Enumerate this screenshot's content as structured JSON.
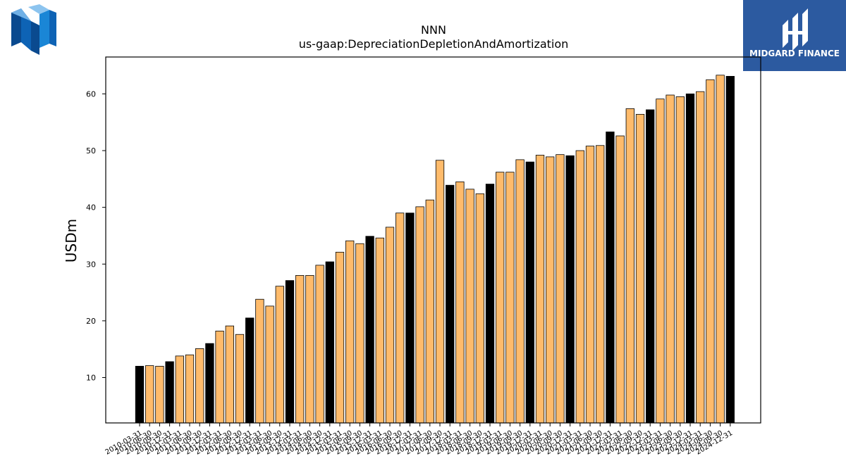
{
  "logos": {
    "left": {
      "icon": "nnn-logo-icon"
    },
    "right": {
      "text": "MIDGARD FINANCE",
      "icon": "midgard-finance-logo-icon",
      "bg_color": "#2c5aa0"
    }
  },
  "colors": {
    "bar_light": "#ffbb6b",
    "bar_dark": "#000000",
    "edge": "#000000"
  },
  "chart_data": {
    "type": "bar",
    "title": "NNN",
    "subtitle": "us-gaap:DepreciationDepletionAndAmortization",
    "xlabel": "",
    "ylabel": "USDm",
    "ylim": [
      2,
      66.5
    ],
    "yticks": [
      10,
      20,
      30,
      40,
      50,
      60
    ],
    "grid": false,
    "categories": [
      "2010-03-31",
      "2010-06-30",
      "2010-09-30",
      "2010-12-31",
      "2011-03-31",
      "2011-06-30",
      "2011-09-30",
      "2011-12-31",
      "2012-03-31",
      "2012-06-30",
      "2012-09-30",
      "2012-12-31",
      "2013-03-31",
      "2013-06-30",
      "2013-09-30",
      "2013-12-31",
      "2014-03-31",
      "2014-06-30",
      "2014-09-30",
      "2014-12-31",
      "2015-03-31",
      "2015-06-30",
      "2015-09-30",
      "2015-12-31",
      "2016-03-31",
      "2016-06-30",
      "2016-09-30",
      "2016-12-31",
      "2017-03-31",
      "2017-06-30",
      "2017-09-30",
      "2017-12-31",
      "2018-03-31",
      "2018-06-30",
      "2018-09-30",
      "2018-12-31",
      "2019-03-31",
      "2019-06-30",
      "2019-09-30",
      "2019-12-31",
      "2020-03-31",
      "2020-06-30",
      "2020-09-30",
      "2020-12-31",
      "2021-03-31",
      "2021-06-30",
      "2021-09-30",
      "2021-12-31",
      "2022-03-31",
      "2022-06-30",
      "2022-09-30",
      "2022-12-31",
      "2023-03-31",
      "2023-06-30",
      "2023-09-30",
      "2023-12-31",
      "2024-03-31",
      "2024-06-30",
      "2024-09-30",
      "2024-12-31"
    ],
    "values": [
      12.0,
      12.1,
      12.0,
      12.8,
      13.8,
      14.0,
      15.1,
      16.0,
      18.2,
      19.1,
      17.6,
      20.5,
      23.8,
      22.6,
      26.1,
      27.1,
      28.0,
      28.0,
      29.8,
      30.4,
      32.1,
      34.1,
      33.6,
      34.9,
      34.6,
      36.5,
      39.0,
      39.0,
      40.1,
      41.3,
      48.3,
      43.9,
      44.5,
      43.2,
      42.4,
      44.1,
      46.2,
      46.2,
      48.4,
      48.0,
      49.2,
      48.9,
      49.3,
      49.1,
      50.0,
      50.8,
      50.9,
      53.3,
      52.6,
      57.4,
      56.4,
      57.2,
      59.1,
      59.8,
      59.5,
      60.0,
      60.4,
      62.5,
      63.3,
      63.1
    ],
    "highlight": [
      "dark",
      "light",
      "light",
      "dark",
      "light",
      "light",
      "light",
      "dark",
      "light",
      "light",
      "light",
      "dark",
      "light",
      "light",
      "light",
      "dark",
      "light",
      "light",
      "light",
      "dark",
      "light",
      "light",
      "light",
      "dark",
      "light",
      "light",
      "light",
      "dark",
      "light",
      "light",
      "light",
      "dark",
      "light",
      "light",
      "light",
      "dark",
      "light",
      "light",
      "light",
      "dark",
      "light",
      "light",
      "light",
      "dark",
      "light",
      "light",
      "light",
      "dark",
      "light",
      "light",
      "light",
      "dark",
      "light",
      "light",
      "light",
      "dark",
      "light",
      "light",
      "light",
      "dark"
    ]
  }
}
